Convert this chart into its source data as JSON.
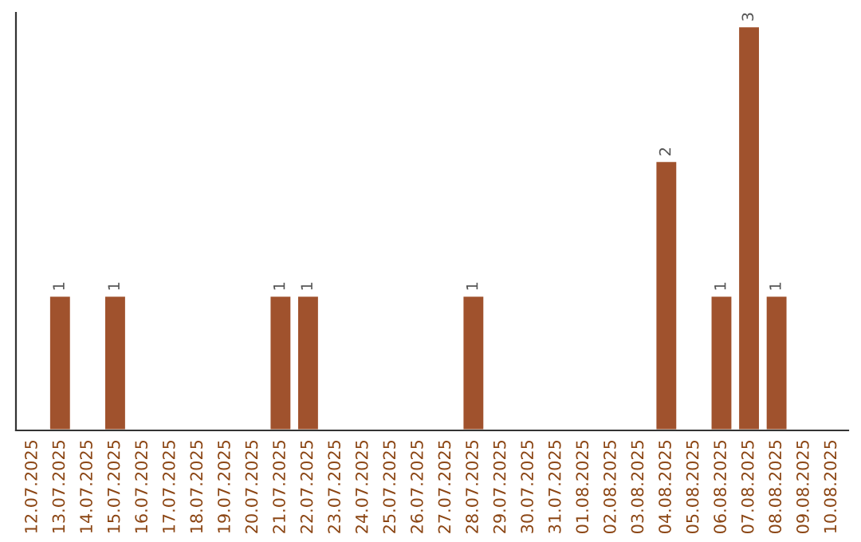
{
  "chart_data": {
    "type": "bar",
    "categories": [
      "12.07.2025",
      "13.07.2025",
      "14.07.2025",
      "15.07.2025",
      "16.07.2025",
      "17.07.2025",
      "18.07.2025",
      "19.07.2025",
      "20.07.2025",
      "21.07.2025",
      "22.07.2025",
      "23.07.2025",
      "24.07.2025",
      "25.07.2025",
      "26.07.2025",
      "27.07.2025",
      "28.07.2025",
      "29.07.2025",
      "30.07.2025",
      "31.07.2025",
      "01.08.2025",
      "02.08.2025",
      "03.08.2025",
      "04.08.2025",
      "05.08.2025",
      "06.08.2025",
      "07.08.2025",
      "08.08.2025",
      "09.08.2025",
      "10.08.2025"
    ],
    "values": [
      0,
      1,
      0,
      1,
      0,
      0,
      0,
      0,
      0,
      1,
      1,
      0,
      0,
      0,
      0,
      0,
      1,
      0,
      0,
      0,
      0,
      0,
      0,
      2,
      0,
      1,
      3,
      1,
      0,
      0
    ],
    "value_labels": [
      null,
      "1",
      null,
      "1",
      null,
      null,
      null,
      null,
      null,
      "1",
      "1",
      null,
      null,
      null,
      null,
      null,
      "1",
      null,
      null,
      null,
      null,
      null,
      null,
      "2",
      null,
      "1",
      "3",
      "1",
      null,
      null
    ],
    "color": "#a0522d",
    "ylim": [
      0,
      3.1
    ],
    "tick_labels": "x",
    "grid": false,
    "legend": false
  }
}
